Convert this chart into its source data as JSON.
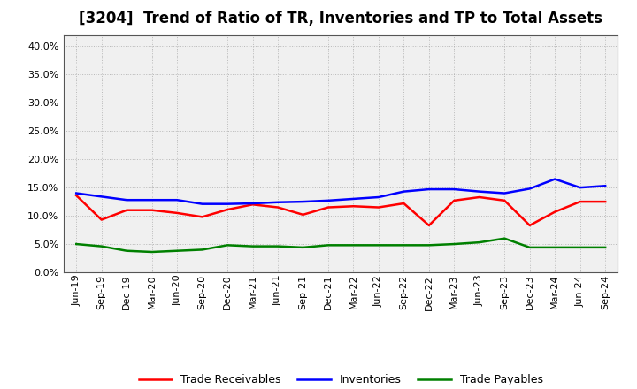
{
  "title": "[3204]  Trend of Ratio of TR, Inventories and TP to Total Assets",
  "x_labels": [
    "Jun-19",
    "Sep-19",
    "Dec-19",
    "Mar-20",
    "Jun-20",
    "Sep-20",
    "Dec-20",
    "Mar-21",
    "Jun-21",
    "Sep-21",
    "Dec-21",
    "Mar-22",
    "Jun-22",
    "Sep-22",
    "Dec-22",
    "Mar-23",
    "Jun-23",
    "Sep-23",
    "Dec-23",
    "Mar-24",
    "Jun-24",
    "Sep-24"
  ],
  "trade_receivables": [
    0.136,
    0.093,
    0.11,
    0.11,
    0.105,
    0.098,
    0.111,
    0.12,
    0.115,
    0.102,
    0.115,
    0.117,
    0.115,
    0.122,
    0.083,
    0.127,
    0.133,
    0.127,
    0.083,
    0.107,
    0.125,
    0.125
  ],
  "inventories": [
    0.14,
    0.134,
    0.128,
    0.128,
    0.128,
    0.121,
    0.121,
    0.122,
    0.124,
    0.125,
    0.127,
    0.13,
    0.133,
    0.143,
    0.147,
    0.147,
    0.143,
    0.14,
    0.148,
    0.165,
    0.15,
    0.153
  ],
  "trade_payables": [
    0.05,
    0.046,
    0.038,
    0.036,
    0.038,
    0.04,
    0.048,
    0.046,
    0.046,
    0.044,
    0.048,
    0.048,
    0.048,
    0.048,
    0.048,
    0.05,
    0.053,
    0.06,
    0.044,
    0.044,
    0.044,
    0.044
  ],
  "tr_color": "#ff0000",
  "inv_color": "#0000ff",
  "tp_color": "#008000",
  "ylim": [
    0.0,
    0.42
  ],
  "yticks": [
    0.0,
    0.05,
    0.1,
    0.15,
    0.2,
    0.25,
    0.3,
    0.35,
    0.4
  ],
  "legend_labels": [
    "Trade Receivables",
    "Inventories",
    "Trade Payables"
  ],
  "bg_color": "#ffffff",
  "plot_bg_color": "#f0f0f0",
  "grid_color": "#aaaaaa",
  "title_fontsize": 12,
  "tick_fontsize": 8,
  "legend_fontsize": 9
}
